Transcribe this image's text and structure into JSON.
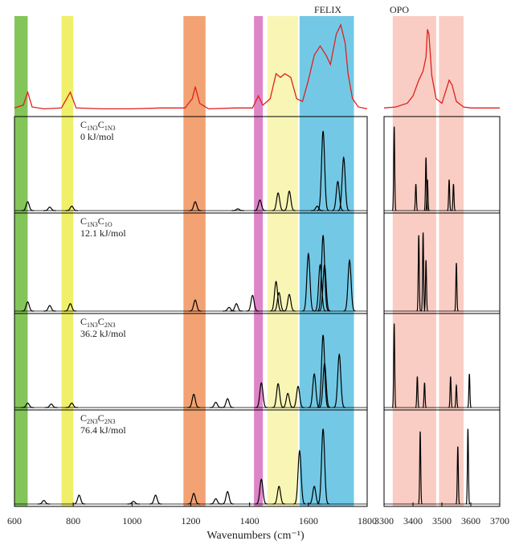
{
  "chart_data": [
    {
      "type": "spectrum",
      "label": "FELIX",
      "xlim": [
        600,
        1800
      ],
      "xticks": [
        600,
        800,
        1000,
        1200,
        1400,
        1600,
        1800
      ],
      "xlabel": "Wavenumbers (cm⁻¹)",
      "bands": [
        {
          "range": [
            600,
            645
          ],
          "color": "#6dbb3c"
        },
        {
          "range": [
            760,
            800
          ],
          "color": "#ecec50"
        },
        {
          "range": [
            1175,
            1250
          ],
          "color": "#f0925a"
        },
        {
          "range": [
            1415,
            1445
          ],
          "color": "#d86ec0"
        },
        {
          "range": [
            1460,
            1565
          ],
          "color": "#f8f4a8"
        },
        {
          "range": [
            1570,
            1755
          ],
          "color": "#5bbfe0"
        }
      ],
      "experiment": {
        "color": "#e02020",
        "x": [
          600,
          630,
          645,
          660,
          700,
          760,
          790,
          810,
          900,
          1000,
          1100,
          1180,
          1205,
          1215,
          1230,
          1260,
          1350,
          1410,
          1430,
          1445,
          1470,
          1490,
          1505,
          1520,
          1540,
          1560,
          1580,
          1600,
          1620,
          1640,
          1660,
          1675,
          1695,
          1710,
          1725,
          1735,
          1750,
          1770,
          1800
        ],
        "values": [
          0.05,
          0.08,
          0.22,
          0.06,
          0.04,
          0.05,
          0.22,
          0.05,
          0.04,
          0.04,
          0.05,
          0.05,
          0.15,
          0.28,
          0.1,
          0.04,
          0.05,
          0.05,
          0.18,
          0.08,
          0.15,
          0.42,
          0.38,
          0.42,
          0.38,
          0.15,
          0.12,
          0.35,
          0.62,
          0.72,
          0.62,
          0.52,
          0.85,
          0.95,
          0.75,
          0.42,
          0.15,
          0.06,
          0.04
        ]
      },
      "calculated": [
        {
          "color": "#000000",
          "x": [
            645,
            720,
            795,
            1215,
            1360,
            1435,
            1497,
            1535,
            1630,
            1650,
            1700,
            1720
          ],
          "values": [
            0.1,
            0.04,
            0.05,
            0.1,
            0.02,
            0.12,
            0.2,
            0.22,
            0.05,
            0.9,
            0.33,
            0.6
          ]
        },
        {
          "color": "#000000",
          "x": [
            645,
            720,
            790,
            1215,
            1330,
            1355,
            1410,
            1490,
            1500,
            1535,
            1600,
            1640,
            1650,
            1655,
            1740
          ],
          "values": [
            0.1,
            0.06,
            0.08,
            0.12,
            0.04,
            0.08,
            0.17,
            0.32,
            0.2,
            0.18,
            0.62,
            0.5,
            0.82,
            0.5,
            0.55
          ]
        },
        {
          "color": "#000000",
          "x": [
            645,
            725,
            795,
            1210,
            1285,
            1325,
            1440,
            1497,
            1530,
            1565,
            1620,
            1650,
            1655,
            1705
          ],
          "values": [
            0.05,
            0.04,
            0.05,
            0.15,
            0.06,
            0.1,
            0.28,
            0.27,
            0.16,
            0.24,
            0.38,
            0.82,
            0.5,
            0.6
          ]
        },
        {
          "color": "#000000",
          "x": [
            700,
            820,
            1005,
            1080,
            1210,
            1285,
            1325,
            1440,
            1500,
            1570,
            1620,
            1650
          ],
          "values": [
            0.04,
            0.1,
            0.03,
            0.1,
            0.12,
            0.06,
            0.14,
            0.28,
            0.2,
            0.6,
            0.2,
            0.85
          ]
        }
      ],
      "isomers": [
        {
          "name": [
            {
              "base": "C",
              "sub": "1N3"
            },
            {
              "base": "C",
              "sub": "1N3"
            }
          ],
          "energy": "0 kJ/mol"
        },
        {
          "name": [
            {
              "base": "C",
              "sub": "1N3"
            },
            {
              "base": "C",
              "sub": "1O"
            }
          ],
          "energy": "12.1 kJ/mol"
        },
        {
          "name": [
            {
              "base": "C",
              "sub": "1N3"
            },
            {
              "base": "C",
              "sub": "2N3"
            }
          ],
          "energy": "36.2 kJ/mol"
        },
        {
          "name": [
            {
              "base": "C",
              "sub": "2N3"
            },
            {
              "base": "C",
              "sub": "2N3"
            }
          ],
          "energy": "76.4 kJ/mol"
        }
      ]
    },
    {
      "type": "spectrum",
      "label": "OPO",
      "xlim": [
        3300,
        3700
      ],
      "xticks": [
        3300,
        3400,
        3500,
        3600,
        3700
      ],
      "bands": [
        {
          "range": [
            3330,
            3480
          ],
          "color": "#f8c4b8"
        },
        {
          "range": [
            3490,
            3575
          ],
          "color": "#f8c4b8"
        }
      ],
      "experiment": {
        "color": "#e02020",
        "x": [
          3300,
          3340,
          3380,
          3400,
          3420,
          3435,
          3445,
          3450,
          3455,
          3465,
          3480,
          3500,
          3515,
          3525,
          3535,
          3550,
          3575,
          3600,
          3650,
          3700
        ],
        "values": [
          0.05,
          0.06,
          0.1,
          0.18,
          0.35,
          0.45,
          0.6,
          0.9,
          0.85,
          0.4,
          0.15,
          0.1,
          0.25,
          0.35,
          0.3,
          0.12,
          0.06,
          0.05,
          0.05,
          0.05
        ]
      },
      "calculated": [
        {
          "color": "#000000",
          "x": [
            3335,
            3410,
            3445,
            3450,
            3525,
            3540
          ],
          "values": [
            0.95,
            0.3,
            0.6,
            0.35,
            0.35,
            0.3
          ]
        },
        {
          "color": "#000000",
          "x": [
            3420,
            3435,
            3445,
            3550
          ],
          "values": [
            0.82,
            0.85,
            0.55,
            0.52
          ]
        },
        {
          "color": "#000000",
          "x": [
            3335,
            3415,
            3440,
            3530,
            3550,
            3595
          ],
          "values": [
            0.95,
            0.35,
            0.28,
            0.35,
            0.25,
            0.38
          ]
        },
        {
          "color": "#000000",
          "x": [
            3425,
            3555,
            3590
          ],
          "values": [
            0.82,
            0.65,
            0.85
          ]
        }
      ]
    }
  ]
}
